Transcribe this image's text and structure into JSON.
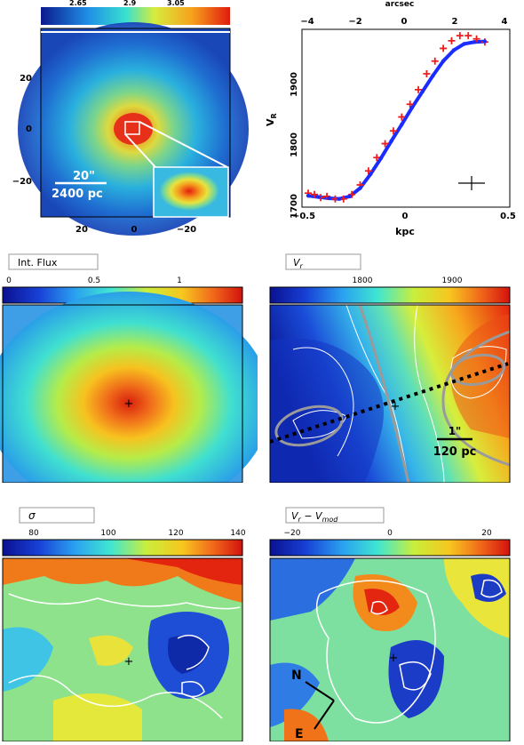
{
  "colors": {
    "map_low": "#0a1a8c",
    "map_mid": "#35d8c8",
    "map_high": "#e4200f",
    "contour": "#ffffff",
    "model_line": "#9a9a9a",
    "red_points": "#ee1c1c",
    "blue_points": "#1a2cff",
    "frame": "#000000"
  },
  "panels": {
    "image": {
      "colorbar_ticks": [
        "2.65",
        "2.9",
        "3.05"
      ],
      "y_ticks": [
        "20",
        "0",
        "−20"
      ],
      "x_ticks": [
        "20",
        "0",
        "−20"
      ],
      "scale_arcsec": "20\"",
      "scale_pc": "2400 pc"
    },
    "rotation": {
      "top_axis_label": "arcsec",
      "top_ticks": [
        "−4",
        "−2",
        "0",
        "2",
        "4"
      ],
      "bottom_ticks": [
        "−0.5",
        "0",
        "0.5"
      ],
      "xlabel": "kpc",
      "ylabel": "V",
      "ylabel_sub": "R",
      "y_ticks": [
        "1900",
        "1800",
        "1700"
      ]
    },
    "flux": {
      "title": "Int. Flux",
      "colorbar_ticks": [
        "0",
        "0.5",
        "1"
      ],
      "marker": "+"
    },
    "velocity": {
      "title": "V",
      "title_sub": "r",
      "colorbar_ticks": [
        "1800",
        "1900"
      ],
      "scale_arcsec": "1\"",
      "scale_pc": "120 pc",
      "marker": "+"
    },
    "sigma": {
      "title": "σ",
      "colorbar_ticks": [
        "80",
        "100",
        "120",
        "140"
      ],
      "marker": "+"
    },
    "residual": {
      "title": "V",
      "title_sub": "r",
      "title_mid": " − V",
      "title_sub2": "mod",
      "colorbar_ticks": [
        "−20",
        "0",
        "20"
      ],
      "compass_n": "N",
      "compass_e": "E",
      "marker": "+"
    }
  },
  "chart_data": [
    {
      "type": "scatter",
      "title": "",
      "xlabel": "kpc",
      "ylabel": "V_R",
      "xlim": [
        -0.5,
        0.5
      ],
      "ylim": [
        1680,
        1960
      ],
      "series": [
        {
          "x": [
            -0.47,
            -0.44,
            -0.41,
            -0.38,
            -0.34,
            -0.3,
            -0.26,
            -0.22,
            -0.18,
            -0.14,
            -0.1,
            -0.06,
            -0.02,
            0.02,
            0.06,
            0.1,
            0.14,
            0.18,
            0.22,
            0.26,
            0.3,
            0.34,
            0.38
          ],
          "y": [
            1702,
            1700,
            1695,
            1697,
            1693,
            1693,
            1700,
            1715,
            1737,
            1758,
            1780,
            1800,
            1822,
            1842,
            1865,
            1890,
            1910,
            1930,
            1942,
            1950,
            1950,
            1945,
            1940
          ]
        },
        {
          "x": [
            -0.47,
            -0.42,
            -0.37,
            -0.32,
            -0.27,
            -0.22,
            -0.17,
            -0.12,
            -0.07,
            -0.02,
            0.03,
            0.08,
            0.13,
            0.18,
            0.23,
            0.28,
            0.33,
            0.38
          ],
          "y": [
            1698,
            1696,
            1694,
            1693,
            1697,
            1710,
            1732,
            1757,
            1784,
            1810,
            1837,
            1862,
            1887,
            1910,
            1927,
            1937,
            1940,
            1941
          ]
        }
      ]
    }
  ]
}
